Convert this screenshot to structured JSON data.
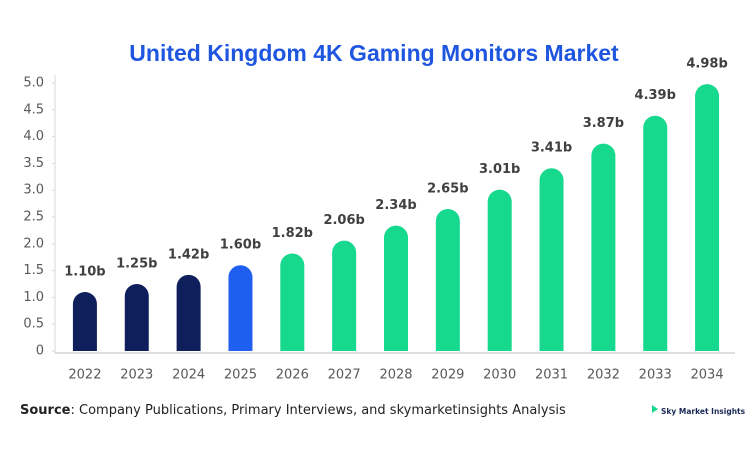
{
  "chart_data": {
    "type": "bar",
    "title": "United Kingdom 4K Gaming Monitors Market",
    "categories": [
      "2022",
      "2023",
      "2024",
      "2025",
      "2026",
      "2027",
      "2028",
      "2029",
      "2030",
      "2031",
      "2032",
      "2033",
      "2034"
    ],
    "values": [
      1.1,
      1.25,
      1.42,
      1.6,
      1.82,
      2.06,
      2.34,
      2.65,
      3.01,
      3.41,
      3.87,
      4.39,
      4.98
    ],
    "value_labels": [
      "1.10b",
      "1.25b",
      "1.42b",
      "1.60b",
      "1.82b",
      "2.06b",
      "2.34b",
      "2.65b",
      "3.01b",
      "3.41b",
      "3.87b",
      "4.39b",
      "4.98b"
    ],
    "colors": [
      "#0f1f5c",
      "#0f1f5c",
      "#0f1f5c",
      "#1f5ff0",
      "#16d98d",
      "#16d98d",
      "#16d98d",
      "#16d98d",
      "#16d98d",
      "#16d98d",
      "#16d98d",
      "#16d98d",
      "#16d98d"
    ],
    "ylim": [
      0,
      5
    ],
    "yticks": [
      0,
      0.5,
      {
        "value": 1,
        "label": "1.0"
      },
      1.5,
      {
        "value": 2,
        "label": "2.0"
      },
      2.5,
      {
        "value": 3,
        "label": "3.0"
      },
      3.5,
      {
        "value": 4,
        "label": "4.0"
      },
      4.5,
      {
        "value": 5,
        "label": "5.0"
      }
    ],
    "source_label": "Source",
    "source_text": ": Company Publications, Primary Interviews, and skymarketinsights Analysis",
    "logo": "Sky Market Insights"
  }
}
